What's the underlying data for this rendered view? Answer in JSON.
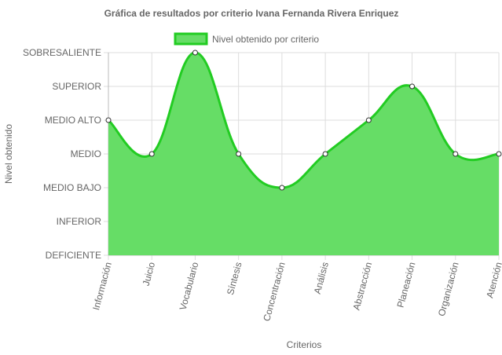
{
  "chart_data": {
    "type": "area",
    "title": "Gráfica de resultados por criterio Ivana Fernanda Rivera Enriquez",
    "xlabel": "Criterios",
    "ylabel": "Nivel obtenido",
    "categories": [
      "Información",
      "Juicio",
      "Vocabulario",
      "Síntesis",
      "Concentración",
      "Análisis",
      "Abstracción",
      "Planeación",
      "Organización",
      "Atención"
    ],
    "y_levels": [
      "DEFICIENTE",
      "INFERIOR",
      "MEDIO BAJO",
      "MEDIO",
      "MEDIO ALTO",
      "SUPERIOR",
      "SOBRESALIENTE"
    ],
    "ylim": [
      0,
      6
    ],
    "series": [
      {
        "name": "Nivel obtenido por criterio",
        "values": [
          4,
          3,
          6,
          3,
          2,
          3,
          4,
          5,
          3,
          3
        ],
        "value_labels": [
          "MEDIO ALTO",
          "MEDIO",
          "SOBRESALIENTE",
          "MEDIO",
          "MEDIO BAJO",
          "MEDIO",
          "MEDIO ALTO",
          "SUPERIOR",
          "MEDIO",
          "MEDIO"
        ]
      }
    ],
    "legend_position": "top",
    "grid": true,
    "colors": {
      "fill": "#66dd66",
      "line": "#22cc22",
      "point_fill": "#ffffff",
      "point_stroke": "#333333",
      "grid": "#dddddd"
    }
  }
}
